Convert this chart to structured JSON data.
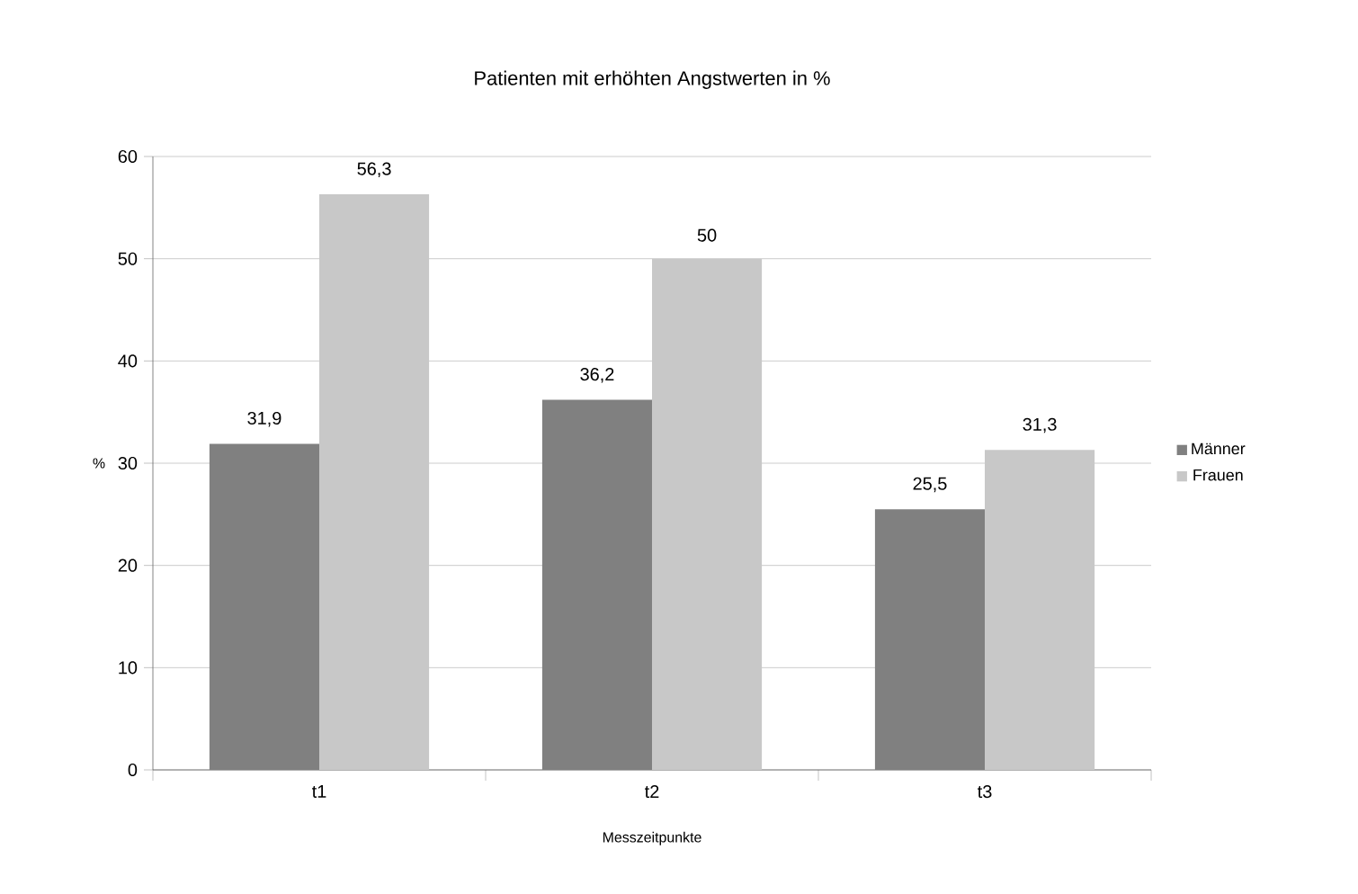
{
  "chart_data": {
    "type": "bar",
    "title": "Patienten mit erhöhten Angstwerten in %",
    "xlabel": "Messzeitpunkte",
    "ylabel": "%",
    "categories": [
      "t1",
      "t2",
      "t3"
    ],
    "series": [
      {
        "name": "Männer",
        "color": "#808080",
        "values": [
          31.9,
          36.2,
          25.5
        ],
        "value_labels": [
          "31,9",
          "36,2",
          "25,5"
        ]
      },
      {
        "name": "Frauen",
        "color": "#c8c8c8",
        "values": [
          56.3,
          50,
          31.3
        ],
        "value_labels": [
          "56,3",
          "50",
          "31,3"
        ]
      }
    ],
    "ylim": [
      0,
      60
    ],
    "yticks": [
      0,
      10,
      20,
      30,
      40,
      50,
      60
    ],
    "grid": "y",
    "legend": "right"
  }
}
